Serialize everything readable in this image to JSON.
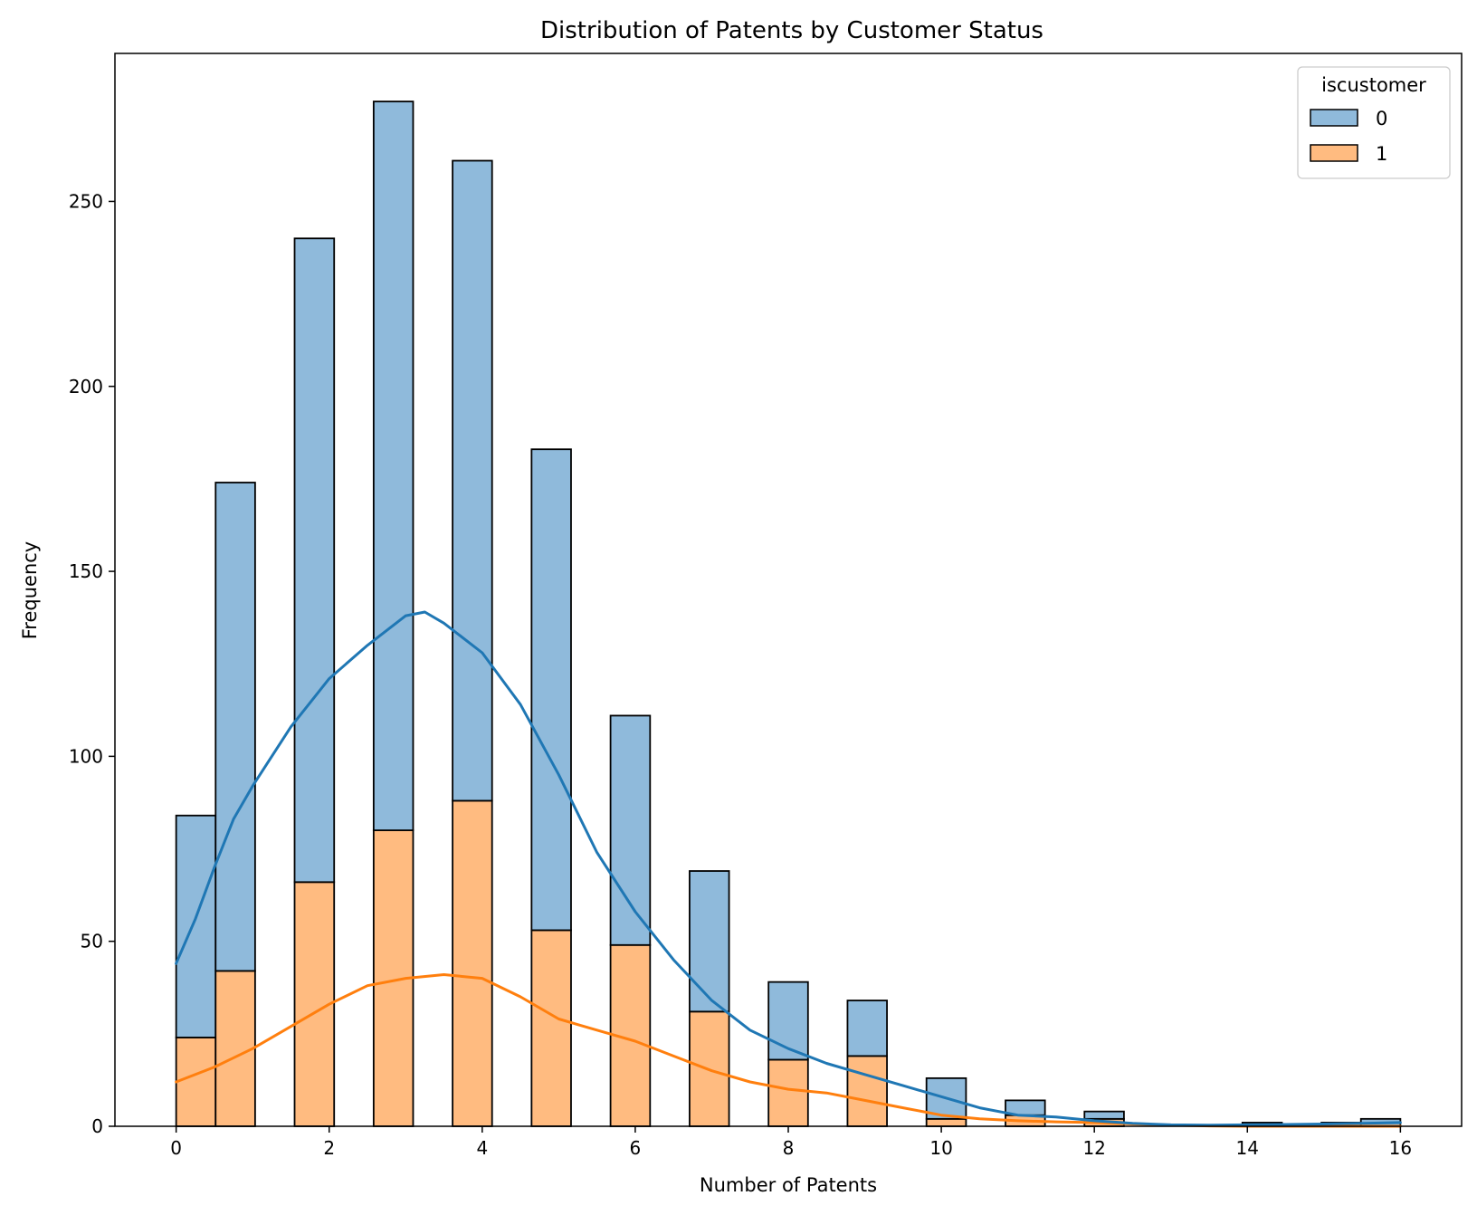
{
  "chart_data": {
    "type": "bar",
    "title": "Distribution of Patents by Customer Status",
    "xlabel": "Number of Patents",
    "ylabel": "Frequency",
    "xlim": [
      -0.8,
      16.8
    ],
    "ylim": [
      0,
      290
    ],
    "xticks": [
      0,
      2,
      4,
      6,
      8,
      10,
      12,
      14,
      16
    ],
    "yticks": [
      0,
      50,
      100,
      150,
      200,
      250
    ],
    "stacked": true,
    "grid": false,
    "legend": {
      "title": "iscustomer",
      "position": "top-right"
    },
    "bins": [
      {
        "x0": 0.0,
        "x1": 0.516
      },
      {
        "x0": 0.516,
        "x1": 1.032
      },
      {
        "x0": 1.548,
        "x1": 2.065
      },
      {
        "x0": 2.581,
        "x1": 3.097
      },
      {
        "x0": 3.613,
        "x1": 4.129
      },
      {
        "x0": 4.645,
        "x1": 5.161
      },
      {
        "x0": 5.677,
        "x1": 6.194
      },
      {
        "x0": 6.71,
        "x1": 7.226
      },
      {
        "x0": 7.742,
        "x1": 8.258
      },
      {
        "x0": 8.774,
        "x1": 9.29
      },
      {
        "x0": 9.806,
        "x1": 10.323
      },
      {
        "x0": 10.839,
        "x1": 11.355
      },
      {
        "x0": 11.871,
        "x1": 12.387
      },
      {
        "x0": 13.935,
        "x1": 14.452
      },
      {
        "x0": 14.968,
        "x1": 15.484
      },
      {
        "x0": 15.484,
        "x1": 16.0
      }
    ],
    "series": [
      {
        "name": "1",
        "color": "#ffbb80",
        "line_color": "#ff7f0e",
        "values": [
          24,
          42,
          66,
          80,
          88,
          53,
          49,
          31,
          18,
          19,
          2,
          3,
          2,
          0,
          0,
          0
        ],
        "kde": [
          [
            0,
            12
          ],
          [
            0.5,
            16
          ],
          [
            1,
            21
          ],
          [
            1.5,
            27
          ],
          [
            2,
            33
          ],
          [
            2.5,
            38
          ],
          [
            3,
            40
          ],
          [
            3.5,
            41
          ],
          [
            4,
            40
          ],
          [
            4.5,
            35
          ],
          [
            5,
            29
          ],
          [
            5.5,
            26
          ],
          [
            6,
            23
          ],
          [
            6.5,
            19
          ],
          [
            7,
            15
          ],
          [
            7.5,
            12
          ],
          [
            8,
            10
          ],
          [
            8.5,
            9
          ],
          [
            9,
            7
          ],
          [
            9.5,
            5
          ],
          [
            10,
            3
          ],
          [
            10.5,
            2
          ],
          [
            11,
            1.5
          ],
          [
            11.5,
            1.2
          ],
          [
            12,
            1
          ],
          [
            12.5,
            0.6
          ],
          [
            13,
            0.3
          ],
          [
            13.5,
            0.1
          ],
          [
            14,
            0
          ],
          [
            15,
            0
          ],
          [
            16,
            0
          ]
        ]
      },
      {
        "name": "0",
        "color": "#8fbadb",
        "line_color": "#1f77b4",
        "values": [
          60,
          132,
          174,
          197,
          173,
          130,
          62,
          38,
          21,
          15,
          11,
          4,
          2,
          1,
          1,
          2
        ],
        "kde": [
          [
            0,
            44
          ],
          [
            0.25,
            56
          ],
          [
            0.5,
            70
          ],
          [
            0.75,
            83
          ],
          [
            1,
            92
          ],
          [
            1.5,
            108
          ],
          [
            2,
            121
          ],
          [
            2.5,
            130
          ],
          [
            3,
            138
          ],
          [
            3.25,
            139
          ],
          [
            3.5,
            136
          ],
          [
            4,
            128
          ],
          [
            4.5,
            114
          ],
          [
            5,
            95
          ],
          [
            5.5,
            74
          ],
          [
            6,
            58
          ],
          [
            6.5,
            45
          ],
          [
            7,
            34
          ],
          [
            7.5,
            26
          ],
          [
            8,
            21
          ],
          [
            8.5,
            17
          ],
          [
            9,
            14
          ],
          [
            9.5,
            11
          ],
          [
            10,
            8
          ],
          [
            10.5,
            5
          ],
          [
            11,
            3
          ],
          [
            11.5,
            2.5
          ],
          [
            12,
            1.5
          ],
          [
            12.5,
            0.8
          ],
          [
            13,
            0.4
          ],
          [
            13.5,
            0.3
          ],
          [
            14,
            0.4
          ],
          [
            14.5,
            0.5
          ],
          [
            15,
            0.6
          ],
          [
            15.5,
            0.8
          ],
          [
            16,
            1
          ]
        ]
      }
    ]
  }
}
